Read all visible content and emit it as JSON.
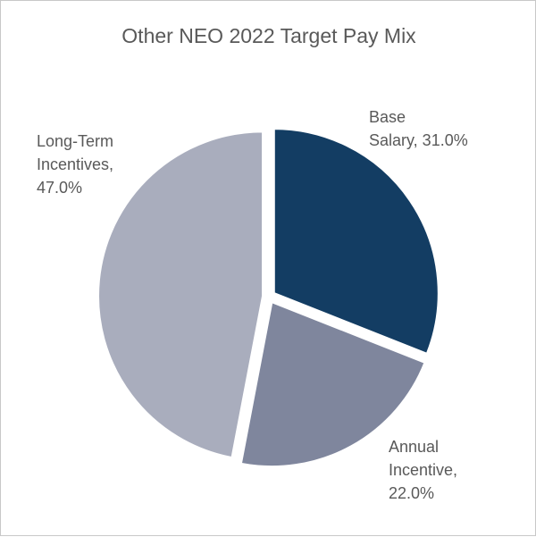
{
  "chart_data": {
    "type": "pie",
    "title": "Other NEO 2022 Target Pay Mix",
    "slices": [
      {
        "name": "Base Salary",
        "value": 31.0,
        "color": "#133d63",
        "label_lines": [
          "Base",
          "Salary, 31.0%"
        ]
      },
      {
        "name": "Annual Incentive",
        "value": 22.0,
        "color": "#7f869d",
        "label_lines": [
          "Annual",
          "Incentive,",
          "22.0%"
        ]
      },
      {
        "name": "Long-Term Incentives",
        "value": 47.0,
        "color": "#a9adbd",
        "label_lines": [
          "Long-Term",
          "Incentives,",
          "47.0%"
        ]
      }
    ],
    "label_color": "#595959",
    "separator_color": "#ffffff"
  }
}
